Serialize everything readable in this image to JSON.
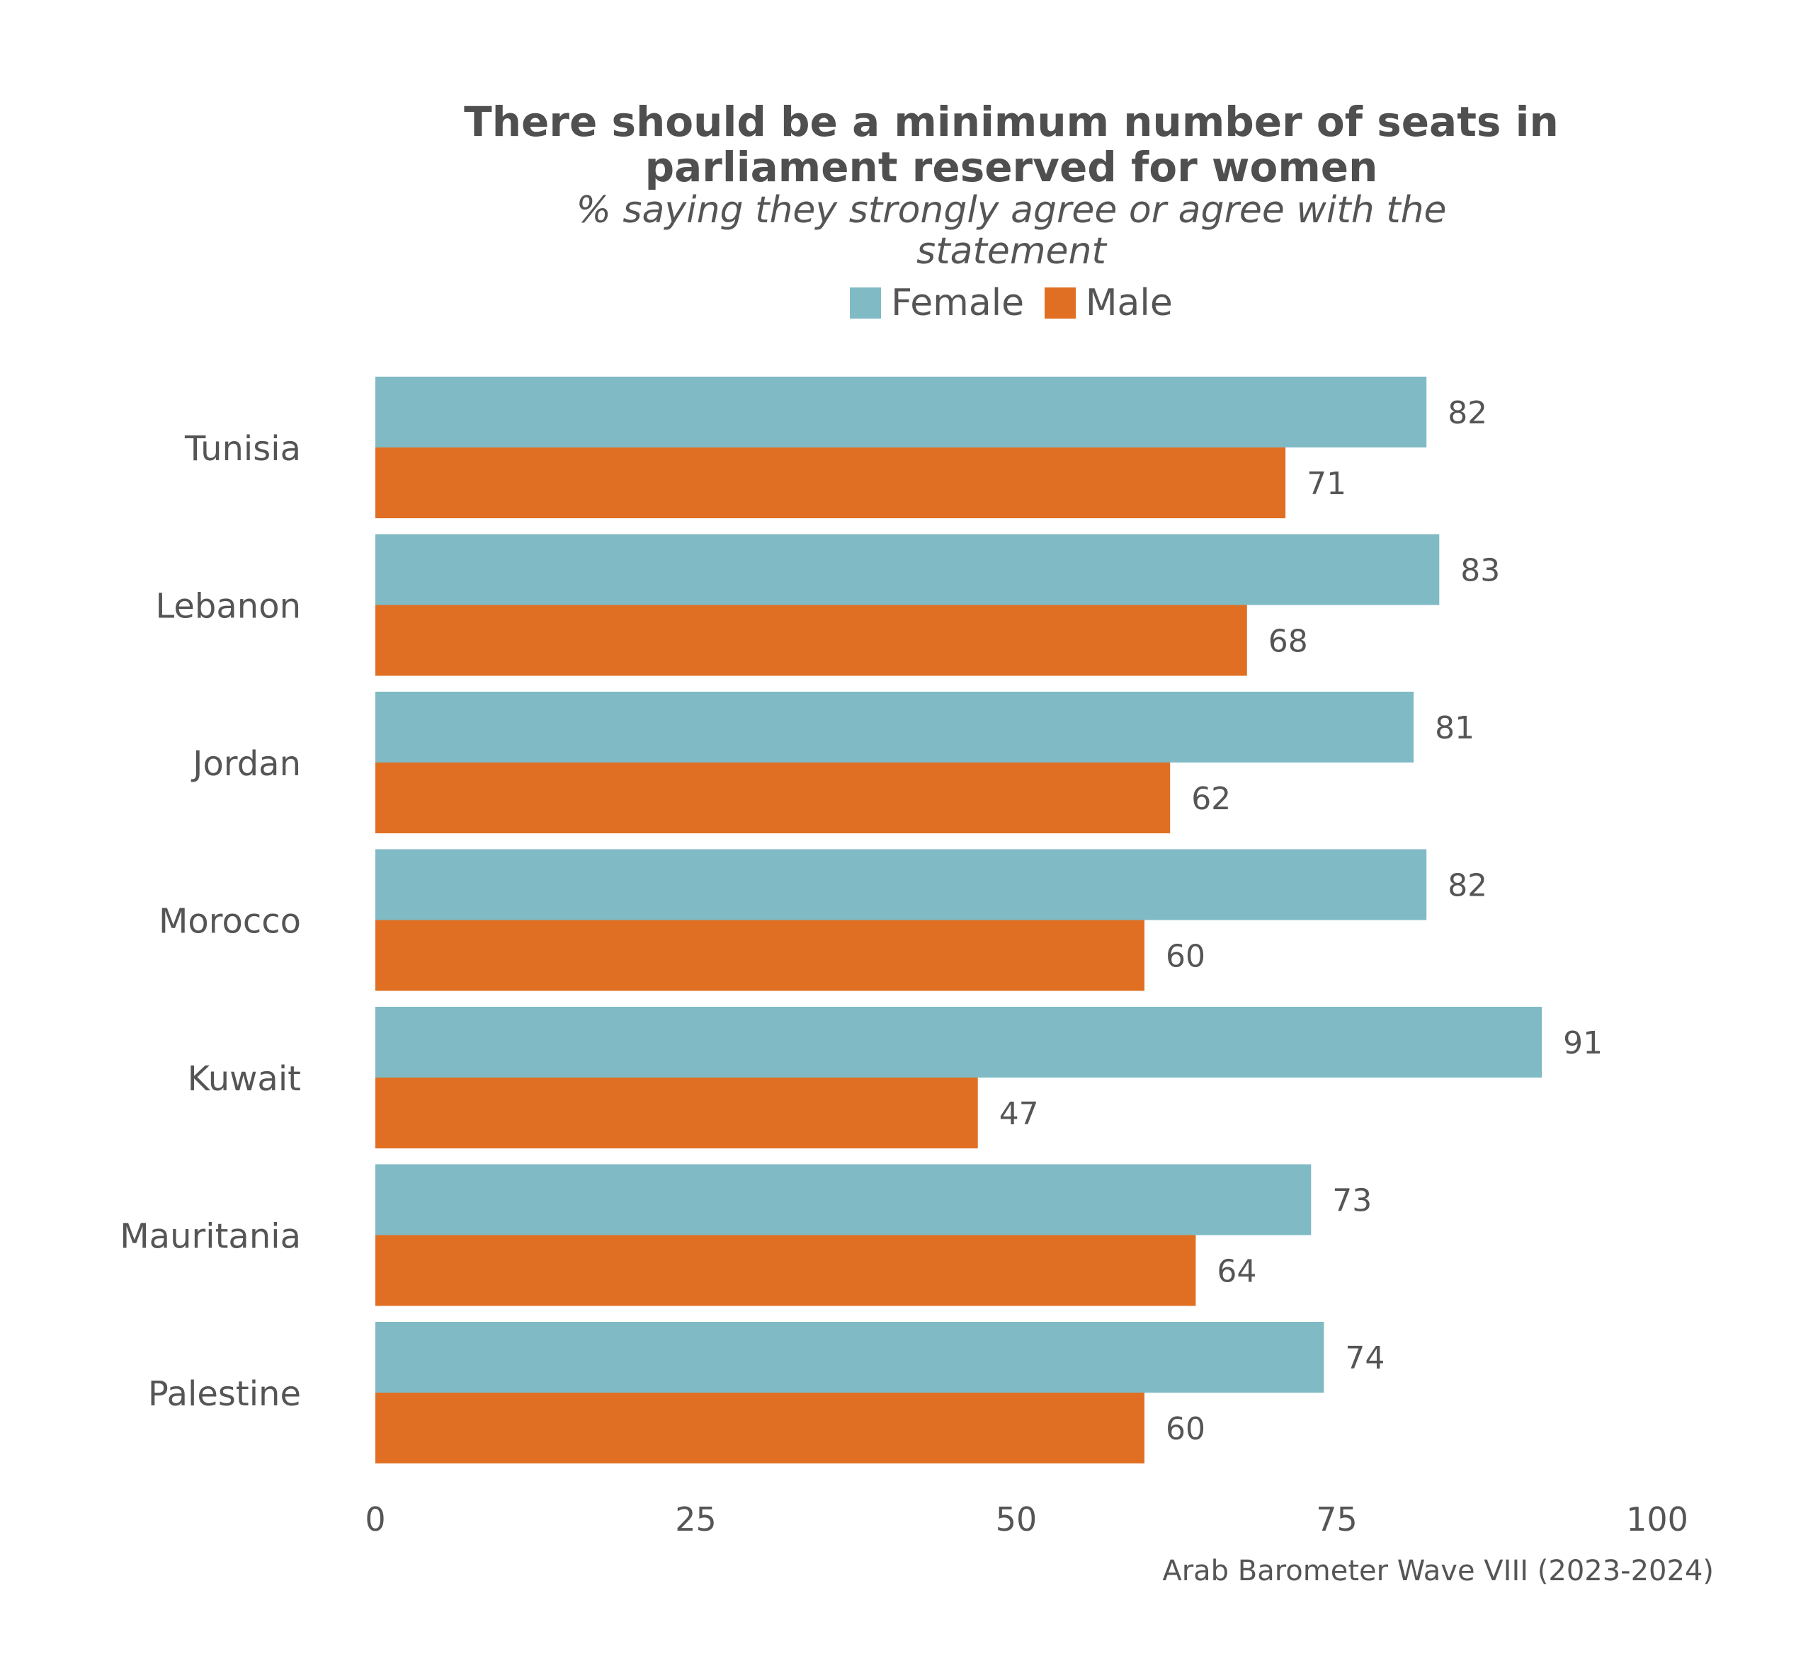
{
  "chart_data": {
    "type": "bar",
    "orientation": "horizontal",
    "title": [
      "There should be a minimum number of seats in",
      "parliament reserved for women"
    ],
    "subtitle": [
      "% saying they strongly agree or agree with the",
      "statement"
    ],
    "categories": [
      "Tunisia",
      "Lebanon",
      "Jordan",
      "Morocco",
      "Kuwait",
      "Mauritania",
      "Palestine"
    ],
    "series": [
      {
        "name": "Female",
        "color": "#80bac4",
        "values": [
          82,
          83,
          81,
          82,
          91,
          73,
          74
        ]
      },
      {
        "name": "Male",
        "color": "#e06f23",
        "values": [
          71,
          68,
          62,
          60,
          47,
          64,
          60
        ]
      }
    ],
    "xlim": [
      0,
      100
    ],
    "xticks": [
      0,
      25,
      50,
      75,
      100
    ],
    "grid": false,
    "legend_position": "top",
    "data_labels": true,
    "source": "Arab Barometer Wave VIII (2023-2024)"
  }
}
